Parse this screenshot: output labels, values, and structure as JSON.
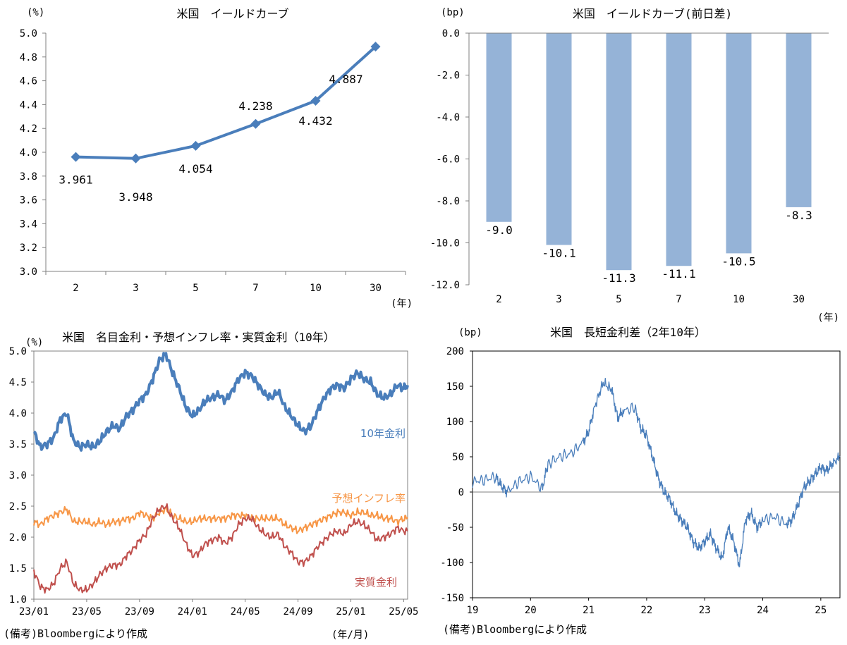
{
  "colors": {
    "line_blue": "#4a7ebb",
    "bar_blue": "#95b3d7",
    "orange": "#f79646",
    "red": "#c0504d",
    "grid": "#808080"
  },
  "footnote_left": "(備考)Bloombergにより作成",
  "footnote_right": "(備考)Bloombergにより作成",
  "chart_data": [
    {
      "id": "chart1",
      "type": "line",
      "title": "米国　イールドカーブ",
      "yunit": "(%)",
      "xunit": "(年)",
      "categories": [
        "2",
        "3",
        "5",
        "7",
        "10",
        "30"
      ],
      "values": [
        3.961,
        3.948,
        4.054,
        4.238,
        4.432,
        4.887
      ],
      "value_labels": [
        "3.961",
        "3.948",
        "4.054",
        "4.238",
        "4.432",
        "4.887"
      ],
      "ylim": [
        3.0,
        5.0
      ],
      "yticks": [
        "3.0",
        "3.2",
        "3.4",
        "3.6",
        "3.8",
        "4.0",
        "4.2",
        "4.4",
        "4.6",
        "4.8",
        "5.0"
      ]
    },
    {
      "id": "chart2",
      "type": "bar",
      "title": "米国　イールドカーブ(前日差)",
      "yunit": "(bp)",
      "xunit": "(年)",
      "categories": [
        "2",
        "3",
        "5",
        "7",
        "10",
        "30"
      ],
      "values": [
        -9.0,
        -10.1,
        -11.3,
        -11.1,
        -10.5,
        -8.3
      ],
      "value_labels": [
        "-9.0",
        "-10.1",
        "-11.3",
        "-11.1",
        "-10.5",
        "-8.3"
      ],
      "ylim": [
        -12.0,
        0.0
      ],
      "yticks": [
        "0.0",
        "-2.0",
        "-4.0",
        "-6.0",
        "-8.0",
        "-10.0",
        "-12.0"
      ]
    },
    {
      "id": "chart3",
      "type": "line",
      "title": "米国　名目金利・予想インフレ率・実質金利（10年）",
      "yunit": "(%)",
      "xunit": "(年/月)",
      "ylim": [
        1.0,
        5.0
      ],
      "yticks": [
        "1.0",
        "1.5",
        "2.0",
        "2.5",
        "3.0",
        "3.5",
        "4.0",
        "4.5",
        "5.0"
      ],
      "xticks": [
        "23/01",
        "23/05",
        "23/09",
        "24/01",
        "24/05",
        "24/09",
        "25/01",
        "25/05"
      ],
      "x_months": [
        0,
        4,
        8,
        12,
        16,
        20,
        24,
        28
      ],
      "x_end_month": 28.3,
      "series": [
        {
          "name": "10年金利",
          "color": "#4a7ebb",
          "months": [
            0,
            0.5,
            1,
            1.5,
            2,
            2.5,
            3,
            3.5,
            4,
            4.5,
            5,
            5.5,
            6,
            6.5,
            7,
            7.5,
            8,
            8.5,
            9,
            9.5,
            10,
            10.5,
            11,
            11.5,
            12,
            12.5,
            13,
            13.5,
            14,
            14.5,
            15,
            15.5,
            16,
            16.5,
            17,
            17.5,
            18,
            18.5,
            19,
            19.5,
            20,
            20.5,
            21,
            21.5,
            22,
            22.5,
            23,
            23.5,
            24,
            24.5,
            25,
            25.5,
            26,
            26.5,
            27,
            27.5,
            28,
            28.3
          ],
          "values": [
            3.7,
            3.45,
            3.5,
            3.6,
            3.9,
            4.0,
            3.55,
            3.45,
            3.5,
            3.45,
            3.55,
            3.7,
            3.8,
            3.75,
            3.95,
            4.05,
            4.2,
            4.3,
            4.55,
            4.85,
            4.95,
            4.65,
            4.4,
            4.1,
            3.95,
            4.05,
            4.2,
            4.25,
            4.3,
            4.2,
            4.35,
            4.55,
            4.65,
            4.6,
            4.45,
            4.3,
            4.25,
            4.35,
            4.1,
            3.95,
            3.8,
            3.7,
            3.8,
            4.05,
            4.25,
            4.4,
            4.45,
            4.4,
            4.55,
            4.65,
            4.55,
            4.5,
            4.3,
            4.25,
            4.3,
            4.45,
            4.4,
            4.45
          ]
        },
        {
          "name": "予想インフレ率",
          "color": "#f79646",
          "months": [
            0,
            0.5,
            1,
            1.5,
            2,
            2.5,
            3,
            3.5,
            4,
            4.5,
            5,
            5.5,
            6,
            6.5,
            7,
            7.5,
            8,
            8.5,
            9,
            9.5,
            10,
            10.5,
            11,
            11.5,
            12,
            12.5,
            13,
            13.5,
            14,
            14.5,
            15,
            15.5,
            16,
            16.5,
            17,
            17.5,
            18,
            18.5,
            19,
            19.5,
            20,
            20.5,
            21,
            21.5,
            22,
            22.5,
            23,
            23.5,
            24,
            24.5,
            25,
            25.5,
            26,
            26.5,
            27,
            27.5,
            28,
            28.3
          ],
          "values": [
            2.25,
            2.2,
            2.3,
            2.35,
            2.4,
            2.45,
            2.25,
            2.25,
            2.25,
            2.2,
            2.25,
            2.2,
            2.25,
            2.25,
            2.3,
            2.3,
            2.4,
            2.35,
            2.3,
            2.4,
            2.45,
            2.35,
            2.3,
            2.25,
            2.25,
            2.3,
            2.3,
            2.3,
            2.3,
            2.3,
            2.35,
            2.35,
            2.35,
            2.3,
            2.3,
            2.3,
            2.3,
            2.3,
            2.2,
            2.15,
            2.1,
            2.15,
            2.2,
            2.25,
            2.3,
            2.35,
            2.4,
            2.4,
            2.35,
            2.4,
            2.4,
            2.35,
            2.35,
            2.3,
            2.3,
            2.25,
            2.3,
            2.3
          ]
        },
        {
          "name": "実質金利",
          "color": "#c0504d",
          "months": [
            0,
            0.5,
            1,
            1.5,
            2,
            2.5,
            3,
            3.5,
            4,
            4.5,
            5,
            5.5,
            6,
            6.5,
            7,
            7.5,
            8,
            8.5,
            9,
            9.5,
            10,
            10.5,
            11,
            11.5,
            12,
            12.5,
            13,
            13.5,
            14,
            14.5,
            15,
            15.5,
            16,
            16.5,
            17,
            17.5,
            18,
            18.5,
            19,
            19.5,
            20,
            20.5,
            21,
            21.5,
            22,
            22.5,
            23,
            23.5,
            24,
            24.5,
            25,
            25.5,
            26,
            26.5,
            27,
            27.5,
            28,
            28.3
          ],
          "values": [
            1.45,
            1.2,
            1.15,
            1.25,
            1.5,
            1.6,
            1.25,
            1.15,
            1.15,
            1.25,
            1.4,
            1.5,
            1.55,
            1.55,
            1.7,
            1.8,
            1.95,
            2.05,
            2.3,
            2.45,
            2.5,
            2.3,
            2.15,
            1.9,
            1.7,
            1.75,
            1.9,
            1.95,
            2.0,
            1.9,
            2.0,
            2.2,
            2.3,
            2.3,
            2.15,
            2.05,
            2.0,
            2.05,
            1.85,
            1.75,
            1.6,
            1.6,
            1.7,
            1.85,
            1.95,
            2.05,
            2.1,
            2.05,
            2.2,
            2.25,
            2.2,
            2.1,
            1.95,
            2.0,
            2.05,
            2.15,
            2.1,
            2.1
          ]
        }
      ]
    },
    {
      "id": "chart4",
      "type": "line",
      "title": "米国　長短金利差（2年10年）",
      "yunit": "(bp)",
      "ylim": [
        -150,
        200
      ],
      "yticks": [
        "200",
        "150",
        "100",
        "50",
        "0",
        "-50",
        "-100",
        "-150"
      ],
      "xticks": [
        "19",
        "20",
        "21",
        "22",
        "23",
        "24",
        "25"
      ],
      "x_years": [
        2019,
        2020,
        2021,
        2022,
        2023,
        2024,
        2025
      ],
      "x_range": [
        2019,
        2025.33
      ],
      "series": [
        {
          "name": "長短金利差",
          "color": "#4a7ebb",
          "years": [
            2019.0,
            2019.2,
            2019.4,
            2019.5,
            2019.6,
            2019.8,
            2020.0,
            2020.2,
            2020.3,
            2020.5,
            2020.7,
            2020.9,
            2021.0,
            2021.1,
            2021.25,
            2021.4,
            2021.5,
            2021.6,
            2021.8,
            2021.9,
            2022.0,
            2022.1,
            2022.2,
            2022.3,
            2022.4,
            2022.5,
            2022.6,
            2022.7,
            2022.8,
            2022.9,
            2023.0,
            2023.1,
            2023.2,
            2023.3,
            2023.4,
            2023.5,
            2023.6,
            2023.7,
            2023.8,
            2023.9,
            2024.0,
            2024.2,
            2024.4,
            2024.5,
            2024.6,
            2024.7,
            2024.8,
            2024.9,
            2025.0,
            2025.1,
            2025.2,
            2025.33
          ],
          "values": [
            15,
            17,
            22,
            8,
            0,
            15,
            22,
            5,
            40,
            50,
            55,
            70,
            85,
            120,
            155,
            145,
            105,
            115,
            120,
            90,
            80,
            50,
            20,
            0,
            -10,
            -30,
            -40,
            -50,
            -70,
            -80,
            -70,
            -60,
            -80,
            -95,
            -50,
            -70,
            -105,
            -40,
            -30,
            -50,
            -40,
            -35,
            -45,
            -40,
            -20,
            5,
            15,
            25,
            35,
            30,
            40,
            50
          ]
        }
      ]
    }
  ]
}
